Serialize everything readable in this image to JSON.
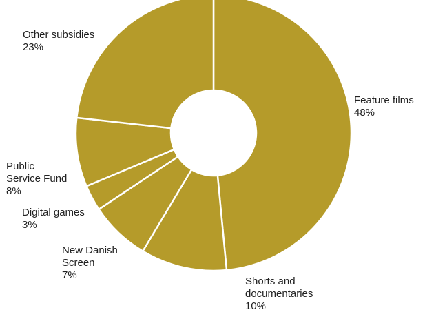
{
  "chart_data": {
    "type": "pie",
    "donut": true,
    "colors": {
      "slice": "#b59b2a",
      "separator": "#ffffff",
      "text": "#222222"
    },
    "slices": [
      {
        "label": [
          "Feature films"
        ],
        "value": 48,
        "display": "48%"
      },
      {
        "label": [
          "Shorts and",
          "documentaries"
        ],
        "value": 10,
        "display": "10%"
      },
      {
        "label": [
          "New Danish",
          "Screen"
        ],
        "value": 7,
        "display": "7%"
      },
      {
        "label": [
          "Digital games"
        ],
        "value": 3,
        "display": "3%"
      },
      {
        "label": [
          "Public",
          "Service Fund"
        ],
        "value": 8,
        "display": "8%"
      },
      {
        "label": [
          "Other subsidies"
        ],
        "value": 23,
        "display": "23%"
      }
    ]
  }
}
